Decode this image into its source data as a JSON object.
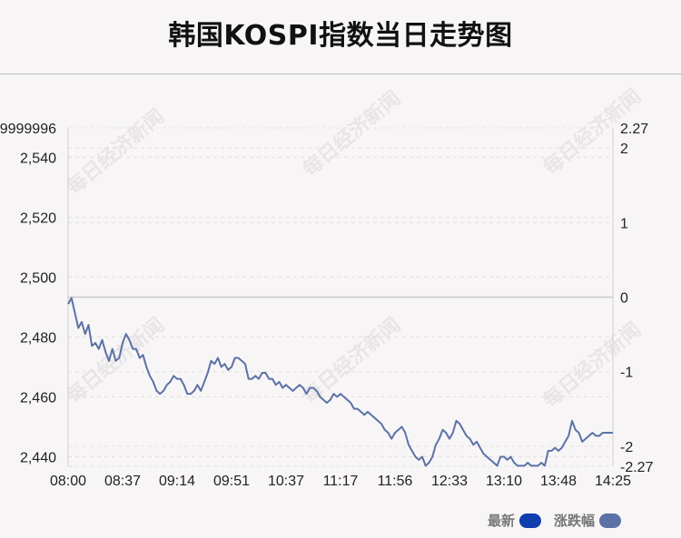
{
  "title": "韩国KOSPI指数当日走势图",
  "watermark": "每日经济新闻",
  "legend": {
    "latest_label": "最新",
    "latest_color": "#0f3fae",
    "change_label": "涨跌幅",
    "change_color": "#5b72a6"
  },
  "chart_data": {
    "type": "line",
    "title": "韩国KOSPI指数当日走势图",
    "xlabel": "",
    "ylabel": "",
    "x_tick_labels": [
      "08:00",
      "08:37",
      "09:14",
      "09:51",
      "10:37",
      "11:17",
      "11:56",
      "12:33",
      "13:10",
      "13:48",
      "14:25"
    ],
    "left_axis": {
      "ylim": [
        2436.8,
        2549.8
      ],
      "top_label": "9999996",
      "tick_values": [
        2440,
        2460,
        2480,
        2500,
        2520,
        2540
      ],
      "tick_labels": [
        "2,440",
        "2,460",
        "2,480",
        "2,500",
        "2,520",
        "2,540"
      ]
    },
    "right_axis": {
      "ylim": [
        -2.27,
        2.27
      ],
      "top_label": "2.27",
      "bottom_label": "-2.27",
      "tick_values": [
        -2,
        -1,
        0,
        1,
        2
      ],
      "tick_labels": [
        "-2",
        "-1",
        "0",
        "1",
        "2"
      ]
    },
    "reference_value": 2493.3,
    "grid": true,
    "series": [
      {
        "color": "#5b72a6",
        "x": [
          0,
          1,
          2,
          3,
          4,
          5,
          6,
          7,
          8,
          9,
          10,
          11,
          12,
          13,
          14,
          15,
          16,
          17,
          18,
          19,
          20,
          21,
          22,
          23,
          24,
          25,
          26,
          27,
          28,
          29,
          30,
          31,
          32,
          33,
          34,
          35,
          36,
          37,
          38,
          39,
          40,
          41,
          42,
          43,
          44,
          45,
          46,
          47,
          48,
          49,
          50,
          51,
          52,
          53,
          54,
          55,
          56,
          57,
          58,
          59,
          60,
          61,
          62,
          63,
          64,
          65,
          66,
          67,
          68,
          69,
          70,
          71,
          72,
          73,
          74,
          75,
          76,
          77,
          78,
          79,
          80,
          81,
          82,
          83,
          84,
          85,
          86,
          87,
          88,
          89,
          90,
          91,
          92,
          93,
          94,
          95,
          96,
          97,
          98,
          99,
          100,
          101,
          102,
          103,
          104,
          105,
          106,
          107,
          108,
          109,
          110,
          111,
          112,
          113,
          114,
          115,
          116,
          117,
          118,
          119,
          120,
          121,
          122,
          123,
          124,
          125,
          126,
          127,
          128,
          129,
          130,
          131,
          132,
          133,
          134,
          135,
          136,
          137,
          138,
          139,
          140,
          141,
          142,
          143,
          144,
          145,
          146,
          147,
          148,
          149,
          150,
          151,
          152,
          153,
          154,
          155,
          156,
          157,
          158,
          159,
          160
        ],
        "values": [
          2491,
          2493,
          2488,
          2483,
          2485,
          2481,
          2484,
          2477,
          2478,
          2476,
          2479,
          2475,
          2472,
          2476,
          2472,
          2473,
          2478,
          2481,
          2479,
          2476,
          2476,
          2473,
          2474,
          2470,
          2467,
          2465,
          2462,
          2461,
          2462,
          2464,
          2465,
          2467,
          2466,
          2466,
          2464,
          2461,
          2461,
          2462,
          2464,
          2462,
          2465,
          2468,
          2472,
          2471,
          2473,
          2470,
          2471,
          2469,
          2470,
          2473,
          2473,
          2472,
          2471,
          2466,
          2466,
          2467,
          2466,
          2468,
          2468,
          2466,
          2466,
          2464,
          2465,
          2463,
          2464,
          2463,
          2462,
          2463,
          2464,
          2463,
          2461,
          2463,
          2463,
          2462,
          2460,
          2459,
          2458,
          2459,
          2461,
          2460,
          2461,
          2460,
          2459,
          2458,
          2456,
          2456,
          2455,
          2454,
          2455,
          2454,
          2453,
          2452,
          2451,
          2449,
          2448,
          2446,
          2448,
          2449,
          2450,
          2448,
          2444,
          2442,
          2440,
          2439,
          2440,
          2437,
          2438,
          2440,
          2444,
          2446,
          2449,
          2448,
          2446,
          2448,
          2452,
          2451,
          2449,
          2447,
          2446,
          2444,
          2445,
          2443,
          2441,
          2440,
          2439,
          2438,
          2437,
          2440,
          2440,
          2439,
          2440,
          2438,
          2437,
          2437,
          2437,
          2438,
          2437,
          2437,
          2437,
          2438,
          2437,
          2442,
          2442,
          2443,
          2442,
          2443,
          2445,
          2447,
          2452,
          2449,
          2448,
          2445,
          2446,
          2447,
          2448,
          2447,
          2447,
          2448,
          2448,
          2448,
          2448
        ]
      }
    ]
  }
}
